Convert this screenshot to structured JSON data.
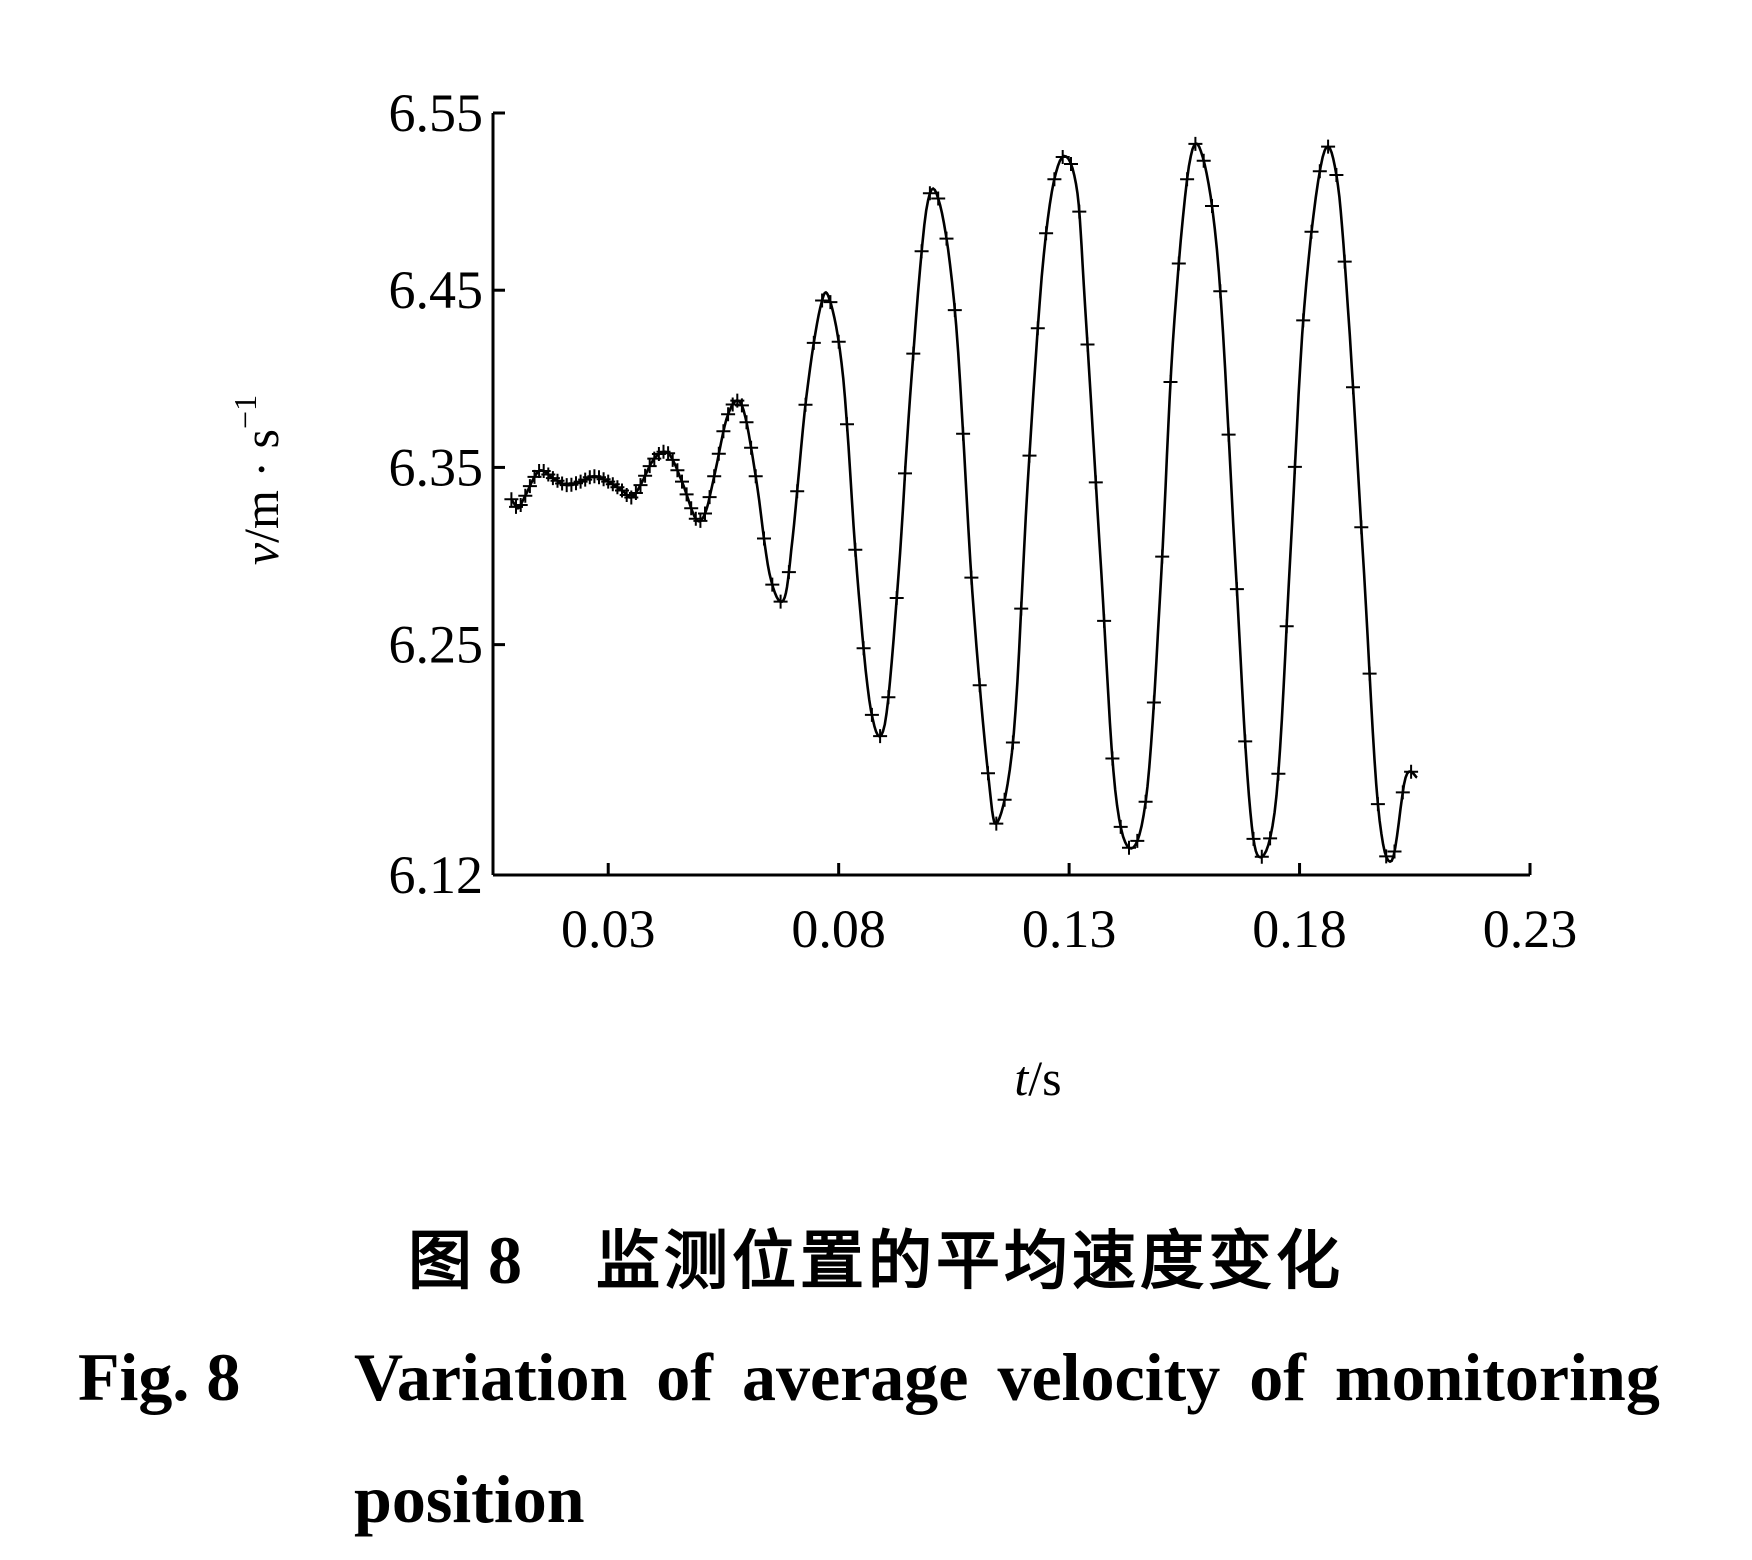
{
  "chart_data": {
    "type": "line",
    "xlabel_italic": "t",
    "xlabel_unit": "/s",
    "ylabel_italic": "v",
    "ylabel_unit": "/m · s",
    "ylabel_exp": "−1",
    "xlim": [
      0.005,
      0.23
    ],
    "ylim": [
      6.12,
      6.55
    ],
    "xticks": [
      "0.03",
      "0.08",
      "0.13",
      "0.18",
      "0.23"
    ],
    "yticks": [
      "6.12",
      "6.25",
      "6.35",
      "6.45",
      "6.55"
    ],
    "marker": "+",
    "color": "#000000",
    "series": [
      {
        "x": [
          0.009,
          0.0095,
          0.0105,
          0.012,
          0.015,
          0.018,
          0.021,
          0.024,
          0.027,
          0.03,
          0.033,
          0.035,
          0.037,
          0.04,
          0.043,
          0.046,
          0.049,
          0.051,
          0.053,
          0.056,
          0.059,
          0.062,
          0.065,
          0.068,
          0.07,
          0.073,
          0.076,
          0.078,
          0.081,
          0.084,
          0.087,
          0.09,
          0.093,
          0.0955,
          0.099,
          0.102,
          0.1055,
          0.109,
          0.1125,
          0.1145,
          0.118,
          0.121,
          0.1245,
          0.128,
          0.1315,
          0.1335,
          0.137,
          0.14,
          0.1435,
          0.147,
          0.15,
          0.1525,
          0.156,
          0.159,
          0.1625,
          0.166,
          0.169,
          0.1715,
          0.175,
          0.178,
          0.181,
          0.185,
          0.188,
          0.1905,
          0.194,
          0.197,
          0.2,
          0.203,
          0.2055
        ],
        "y": [
          6.332,
          6.33,
          6.327,
          6.334,
          6.348,
          6.344,
          6.34,
          6.342,
          6.345,
          6.342,
          6.337,
          6.333,
          6.34,
          6.355,
          6.358,
          6.342,
          6.321,
          6.324,
          6.345,
          6.38,
          6.385,
          6.345,
          6.29,
          6.275,
          6.31,
          6.39,
          6.44,
          6.445,
          6.4,
          6.29,
          6.213,
          6.205,
          6.29,
          6.39,
          6.495,
          6.498,
          6.43,
          6.28,
          6.175,
          6.15,
          6.2,
          6.34,
          6.47,
          6.523,
          6.51,
          6.44,
          6.29,
          6.168,
          6.135,
          6.17,
          6.29,
          6.42,
          6.52,
          6.525,
          6.46,
          6.3,
          6.165,
          6.13,
          6.165,
          6.3,
          6.44,
          6.525,
          6.515,
          6.44,
          6.29,
          6.16,
          6.128,
          6.175,
          6.175
        ]
      }
    ]
  },
  "caption": {
    "cn_label": "图",
    "cn_num": "8",
    "cn_text": "监测位置的平均速度变化",
    "en_label": "Fig.  8",
    "en_text_line1": "Variation of average velocity of monitoring",
    "en_text_line2": "position"
  }
}
